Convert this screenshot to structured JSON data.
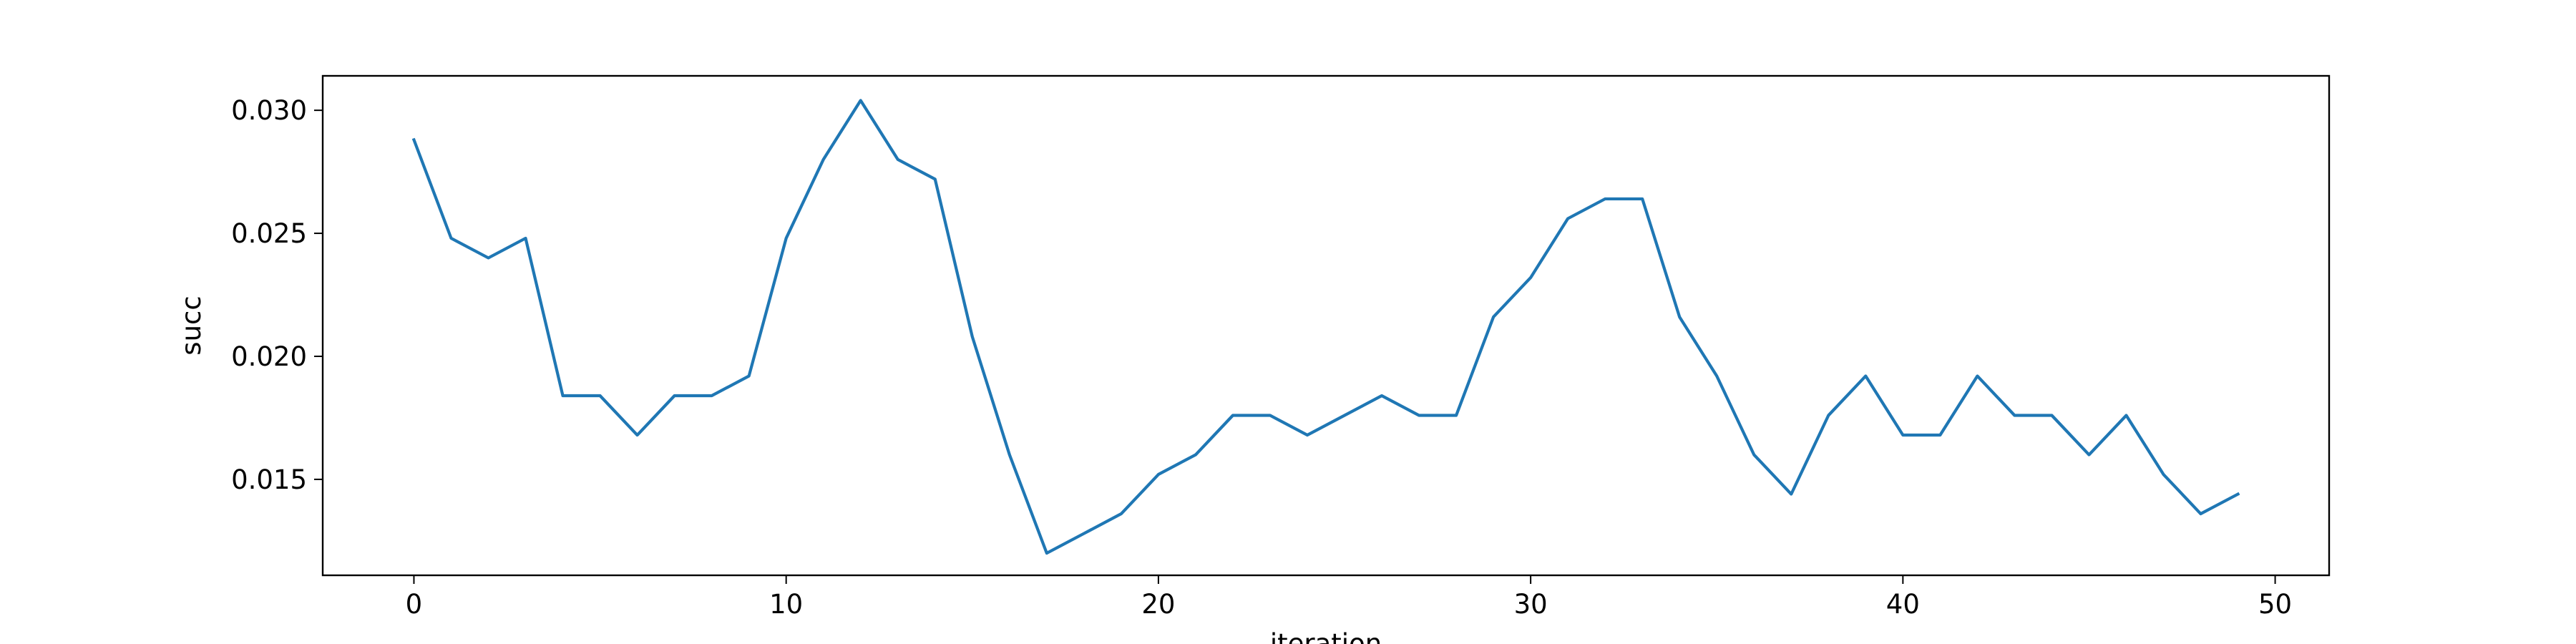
{
  "chart_data": {
    "type": "line",
    "title": "",
    "xlabel": "iteration",
    "ylabel": "succ",
    "xlim": [
      -2.45,
      51.45
    ],
    "ylim": [
      0.0111,
      0.0314
    ],
    "x_ticks": [
      0,
      10,
      20,
      30,
      40,
      50
    ],
    "y_ticks": [
      0.015,
      0.02,
      0.025,
      0.03
    ],
    "x_tick_labels": [
      "0",
      "10",
      "20",
      "30",
      "40",
      "50"
    ],
    "y_tick_labels": [
      "0.015",
      "0.020",
      "0.025",
      "0.030"
    ],
    "grid": false,
    "legend": false,
    "line_color": "#1f77b4",
    "x": [
      0,
      1,
      2,
      3,
      4,
      5,
      6,
      7,
      8,
      9,
      10,
      11,
      12,
      13,
      14,
      15,
      16,
      17,
      18,
      19,
      20,
      21,
      22,
      23,
      24,
      25,
      26,
      27,
      28,
      29,
      30,
      31,
      32,
      33,
      34,
      35,
      36,
      37,
      38,
      39,
      40,
      41,
      42,
      43,
      44,
      45,
      46,
      47,
      48,
      49
    ],
    "series": [
      {
        "values": [
          0.0288,
          0.0248,
          0.024,
          0.0248,
          0.0184,
          0.0184,
          0.0168,
          0.0184,
          0.0184,
          0.0192,
          0.0248,
          0.028,
          0.0304,
          0.028,
          0.0272,
          0.0208,
          0.016,
          0.012,
          0.0128,
          0.0136,
          0.0152,
          0.016,
          0.0176,
          0.0176,
          0.0168,
          0.0176,
          0.0184,
          0.0176,
          0.0176,
          0.0216,
          0.0232,
          0.0256,
          0.0264,
          0.0264,
          0.0216,
          0.0192,
          0.016,
          0.0144,
          0.0176,
          0.0192,
          0.0168,
          0.0168,
          0.0192,
          0.0176,
          0.0176,
          0.016,
          0.0176,
          0.0152,
          0.0136,
          0.0144
        ]
      }
    ]
  }
}
